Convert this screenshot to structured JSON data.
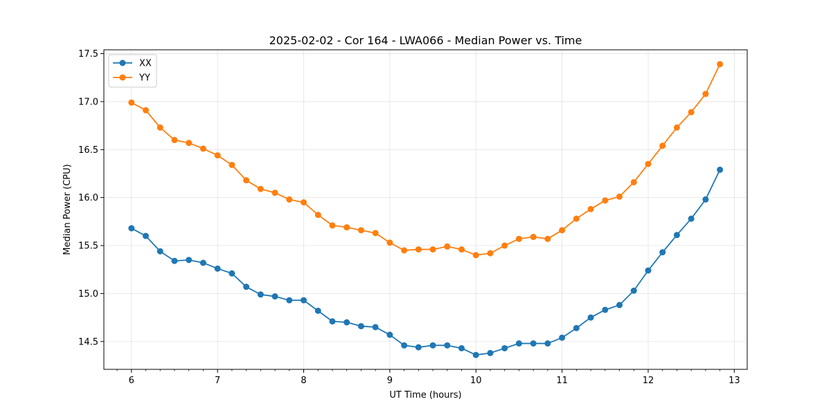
{
  "chart_data": {
    "type": "line",
    "title": "2025-02-02 - Cor 164 - LWA066 - Median Power vs. Time",
    "xlabel": "UT Time (hours)",
    "ylabel": "Median Power (CPU)",
    "xlim": [
      5.68,
      13.15
    ],
    "ylim": [
      14.21,
      17.54
    ],
    "xticks": [
      6,
      7,
      8,
      9,
      10,
      11,
      12,
      13
    ],
    "xtick_labels": [
      "6",
      "7",
      "8",
      "9",
      "10",
      "11",
      "12",
      "13"
    ],
    "yticks": [
      14.5,
      15.0,
      15.5,
      16.0,
      16.5,
      17.0,
      17.5
    ],
    "ytick_labels": [
      "14.5",
      "15.0",
      "15.5",
      "16.0",
      "16.5",
      "17.0",
      "17.5"
    ],
    "grid": true,
    "legend_position": "top-left",
    "x": [
      6.0,
      6.1667,
      6.3333,
      6.5,
      6.6667,
      6.8333,
      7.0,
      7.1667,
      7.3333,
      7.5,
      7.6667,
      7.8333,
      8.0,
      8.1667,
      8.3333,
      8.5,
      8.6667,
      8.8333,
      9.0,
      9.1667,
      9.3333,
      9.5,
      9.6667,
      9.8333,
      10.0,
      10.1667,
      10.3333,
      10.5,
      10.6667,
      10.8333,
      11.0,
      11.1667,
      11.3333,
      11.5,
      11.6667,
      11.8333,
      12.0,
      12.1667,
      12.3333,
      12.5,
      12.6667,
      12.8333
    ],
    "series": [
      {
        "name": "XX",
        "color": "#1f77b4",
        "values": [
          15.68,
          15.6,
          15.44,
          15.34,
          15.35,
          15.32,
          15.26,
          15.21,
          15.07,
          14.99,
          14.97,
          14.93,
          14.93,
          14.82,
          14.71,
          14.7,
          14.66,
          14.65,
          14.57,
          14.46,
          14.44,
          14.46,
          14.46,
          14.43,
          14.36,
          14.38,
          14.43,
          14.48,
          14.48,
          14.48,
          14.54,
          14.64,
          14.75,
          14.83,
          14.88,
          15.03,
          15.24,
          15.43,
          15.61,
          15.78,
          15.98,
          16.29
        ]
      },
      {
        "name": "YY",
        "color": "#ff7f0e",
        "values": [
          16.99,
          16.91,
          16.73,
          16.6,
          16.57,
          16.51,
          16.44,
          16.34,
          16.18,
          16.09,
          16.05,
          15.98,
          15.95,
          15.82,
          15.71,
          15.69,
          15.66,
          15.63,
          15.53,
          15.45,
          15.46,
          15.46,
          15.49,
          15.46,
          15.4,
          15.42,
          15.5,
          15.57,
          15.59,
          15.57,
          15.66,
          15.78,
          15.88,
          15.97,
          16.01,
          16.16,
          16.35,
          16.54,
          16.73,
          16.89,
          17.08,
          17.39
        ]
      }
    ]
  }
}
